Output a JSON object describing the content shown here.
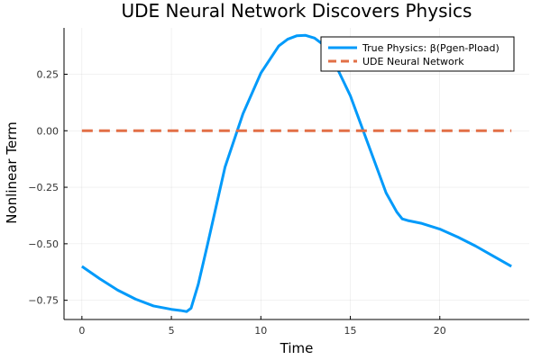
{
  "chart_data": {
    "type": "line",
    "title": "UDE Neural Network Discovers Physics",
    "xlabel": "Time",
    "ylabel": "Nonlinear Term",
    "xlim": [
      -1,
      25
    ],
    "ylim": [
      -0.835,
      0.455
    ],
    "xticks": [
      0,
      5,
      10,
      15,
      20
    ],
    "xtick_labels": [
      "0",
      "5",
      "10",
      "15",
      "20"
    ],
    "yticks": [
      -0.75,
      -0.5,
      -0.25,
      0.0,
      0.25
    ],
    "ytick_labels": [
      "−0.75",
      "−0.50",
      "−0.25",
      "0.00",
      "0.25"
    ],
    "grid": true,
    "legend_position": "top-right",
    "series": [
      {
        "name": "True Physics: β(Pgen-Pload)",
        "color": "#009AFA",
        "style": "solid",
        "x": [
          0,
          1,
          2,
          3,
          4,
          5,
          5.5,
          5.85,
          6.1,
          6.5,
          7,
          8,
          9,
          10,
          11,
          11.5,
          12,
          12.5,
          13,
          13.5,
          14,
          15,
          16,
          17,
          17.6,
          17.9,
          18.2,
          19,
          20,
          21,
          22,
          23,
          24
        ],
        "y": [
          -0.6,
          -0.655,
          -0.705,
          -0.745,
          -0.775,
          -0.79,
          -0.795,
          -0.8,
          -0.785,
          -0.68,
          -0.51,
          -0.16,
          0.075,
          0.255,
          0.375,
          0.405,
          0.42,
          0.422,
          0.41,
          0.38,
          0.32,
          0.155,
          -0.06,
          -0.275,
          -0.36,
          -0.39,
          -0.397,
          -0.41,
          -0.435,
          -0.47,
          -0.51,
          -0.555,
          -0.6
        ]
      },
      {
        "name": "UDE Neural Network",
        "color": "#E26F46",
        "style": "dashed",
        "x": [
          0,
          24
        ],
        "y": [
          0.0,
          0.0
        ]
      }
    ]
  }
}
